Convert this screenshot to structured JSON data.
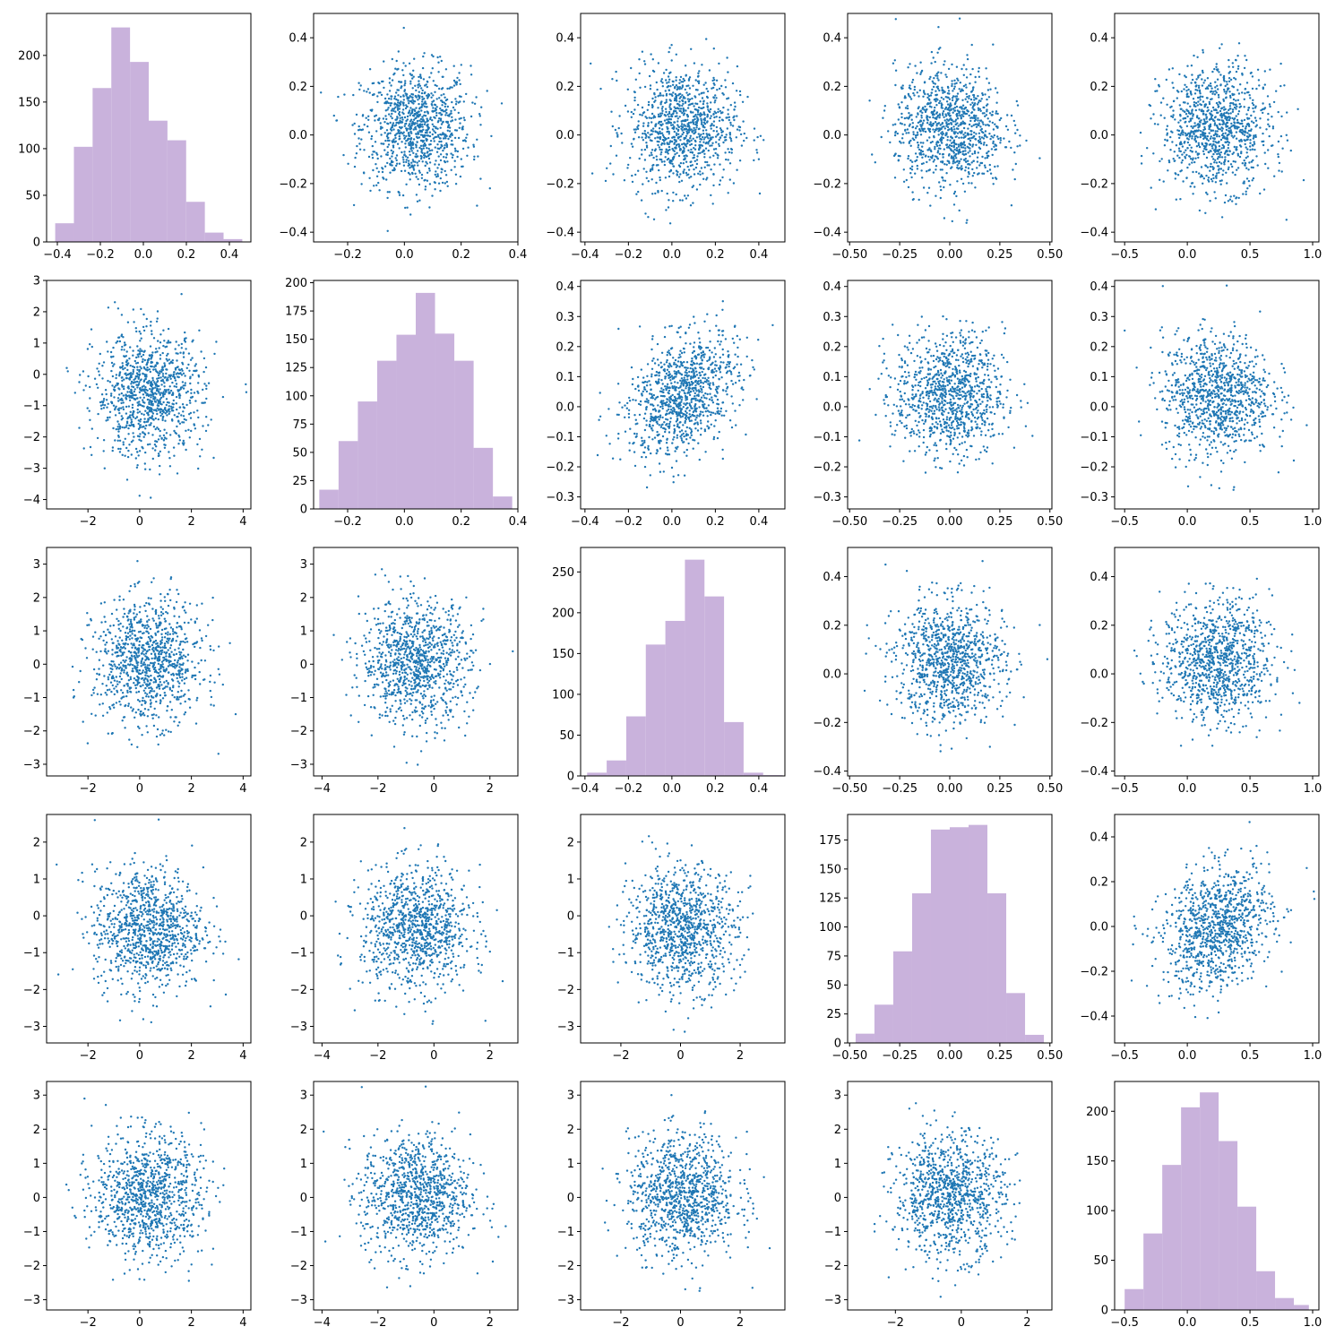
{
  "figure": {
    "background": "#ffffff",
    "grid": "5x5 pair plot",
    "diagonal": "histogram",
    "off_diagonal": "scatter"
  },
  "colors": {
    "hist": "#c9b2dc",
    "scatter": "#1f77b4",
    "frame": "#000000"
  },
  "variables": [
    {
      "index": 0,
      "range": [
        -0.45,
        0.5
      ],
      "ticks": [
        -0.4,
        -0.2,
        0.0,
        0.2,
        0.4
      ],
      "tick_labels": [
        "−0.4",
        "−0.2",
        "0.0",
        "0.2",
        "0.4"
      ]
    },
    {
      "index": 1,
      "range": [
        -0.32,
        0.4
      ],
      "ticks": [
        -0.2,
        0.0,
        0.2,
        0.4
      ],
      "tick_labels": [
        "−0.2",
        "0.0",
        "0.2",
        "0.4"
      ]
    },
    {
      "index": 2,
      "range": [
        -0.42,
        0.52
      ],
      "ticks": [
        -0.4,
        -0.2,
        0.0,
        0.2,
        0.4
      ],
      "tick_labels": [
        "−0.4",
        "−0.2",
        "0.0",
        "0.2",
        "0.4"
      ]
    },
    {
      "index": 3,
      "range": [
        -0.51,
        0.51
      ],
      "ticks": [
        -0.5,
        -0.25,
        0.0,
        0.25,
        0.5
      ],
      "tick_labels": [
        "−0.50",
        "−0.25",
        "0.00",
        "0.25",
        "0.50"
      ]
    },
    {
      "index": 4,
      "range": [
        -0.58,
        1.05
      ],
      "ticks": [
        -0.5,
        0.0,
        0.5,
        1.0
      ],
      "tick_labels": [
        "−0.5",
        "0.0",
        "0.5",
        "1.0"
      ]
    }
  ],
  "scatter_value_axes": {
    "row0": {
      "range": [
        -0.44,
        0.5
      ],
      "ticks": [
        -0.4,
        -0.2,
        0.0,
        0.2,
        0.4
      ],
      "tick_labels": [
        "−0.4",
        "−0.2",
        "0.0",
        "0.2",
        "0.4"
      ]
    },
    "row1": {
      "range": [
        -4.3,
        3.0
      ],
      "ticks": [
        -4,
        -3,
        -2,
        -1,
        0,
        1,
        2,
        3
      ],
      "tick_labels": [
        "−4",
        "−3",
        "−2",
        "−1",
        "0",
        "1",
        "2",
        "3"
      ]
    },
    "row1_col2plus": {
      "range": [
        -0.34,
        0.42
      ],
      "ticks": [
        -0.3,
        -0.2,
        -0.1,
        0.0,
        0.1,
        0.2,
        0.3,
        0.4
      ],
      "tick_labels": [
        "−0.3",
        "−0.2",
        "−0.1",
        "0.0",
        "0.1",
        "0.2",
        "0.3",
        "0.4"
      ]
    },
    "row2": {
      "range": [
        -3.35,
        3.5
      ],
      "ticks": [
        -3,
        -2,
        -1,
        0,
        1,
        2,
        3
      ],
      "tick_labels": [
        "−3",
        "−2",
        "−1",
        "0",
        "1",
        "2",
        "3"
      ]
    },
    "row2_col3plus": {
      "range": [
        -0.42,
        0.52
      ],
      "ticks": [
        -0.4,
        -0.2,
        0.0,
        0.2,
        0.4
      ],
      "tick_labels": [
        "−0.4",
        "−0.2",
        "0.0",
        "0.2",
        "0.4"
      ]
    },
    "row3": {
      "range": [
        -3.45,
        2.75
      ],
      "ticks": [
        -3,
        -2,
        -1,
        0,
        1,
        2
      ],
      "tick_labels": [
        "−3",
        "−2",
        "−1",
        "0",
        "1",
        "2"
      ]
    },
    "row3_col4": {
      "range": [
        -0.52,
        0.5
      ],
      "ticks": [
        -0.4,
        -0.2,
        0.0,
        0.2,
        0.4
      ],
      "tick_labels": [
        "−0.4",
        "−0.2",
        "0.0",
        "0.2",
        "0.4"
      ]
    },
    "row4": {
      "range": [
        -3.3,
        3.4
      ],
      "ticks": [
        -3,
        -2,
        -1,
        0,
        1,
        2,
        3
      ],
      "tick_labels": [
        "−3",
        "−2",
        "−1",
        "0",
        "1",
        "2",
        "3"
      ]
    },
    "col0_x": {
      "range": [
        -3.6,
        4.3
      ],
      "ticks": [
        -2,
        0,
        2,
        4
      ],
      "tick_labels": [
        "−2",
        "0",
        "2",
        "4"
      ]
    },
    "col1_x": {
      "range": [
        -4.3,
        3.0
      ],
      "ticks": [
        -4,
        -2,
        0,
        2
      ],
      "tick_labels": [
        "−4",
        "−2",
        "0",
        "2"
      ]
    },
    "col2_x": {
      "range": [
        -3.35,
        3.5
      ],
      "ticks": [
        -2,
        0,
        2
      ],
      "tick_labels": [
        "−2",
        "0",
        "2"
      ]
    },
    "col3_x": {
      "range": [
        -3.45,
        2.75
      ],
      "ticks": [
        -2,
        0,
        2
      ],
      "tick_labels": [
        "−2",
        "0",
        "2"
      ]
    }
  },
  "chart_data": [
    {
      "type": "bar",
      "panel": "r0c0",
      "bins": [
        -0.41,
        -0.323,
        -0.236,
        -0.149,
        -0.062,
        0.025,
        0.112,
        0.199,
        0.286,
        0.373,
        0.46
      ],
      "counts": [
        20,
        102,
        165,
        230,
        193,
        130,
        109,
        43,
        10,
        3
      ],
      "ylim": [
        0,
        245
      ],
      "yticks": [
        0,
        50,
        100,
        150,
        200
      ],
      "ytick_labels": [
        "0",
        "50",
        "100",
        "150",
        "200"
      ]
    },
    {
      "type": "bar",
      "panel": "r1c1",
      "bins": [
        -0.3,
        -0.232,
        -0.164,
        -0.096,
        -0.028,
        0.04,
        0.108,
        0.176,
        0.244,
        0.312,
        0.38
      ],
      "counts": [
        17,
        60,
        95,
        131,
        154,
        191,
        155,
        131,
        54,
        11
      ],
      "ylim": [
        0,
        202
      ],
      "yticks": [
        0,
        25,
        50,
        75,
        100,
        125,
        150,
        175,
        200
      ],
      "ytick_labels": [
        "0",
        "25",
        "50",
        "75",
        "100",
        "125",
        "150",
        "175",
        "200"
      ]
    },
    {
      "type": "bar",
      "panel": "r2c2",
      "bins": [
        -0.39,
        -0.3,
        -0.21,
        -0.12,
        -0.03,
        0.06,
        0.15,
        0.24,
        0.33,
        0.42,
        0.51
      ],
      "counts": [
        4,
        19,
        73,
        161,
        190,
        265,
        220,
        66,
        4,
        1
      ],
      "ylim": [
        0,
        280
      ],
      "yticks": [
        0,
        50,
        100,
        150,
        200,
        250
      ],
      "ytick_labels": [
        "0",
        "50",
        "100",
        "150",
        "200",
        "250"
      ]
    },
    {
      "type": "bar",
      "panel": "r3c3",
      "bins": [
        -0.47,
        -0.376,
        -0.282,
        -0.188,
        -0.094,
        0.0,
        0.094,
        0.188,
        0.282,
        0.376,
        0.47
      ],
      "counts": [
        8,
        33,
        79,
        129,
        184,
        186,
        188,
        129,
        43,
        7
      ],
      "ylim": [
        0,
        197
      ],
      "yticks": [
        0,
        25,
        50,
        75,
        100,
        125,
        150,
        175
      ],
      "ytick_labels": [
        "0",
        "25",
        "50",
        "75",
        "100",
        "125",
        "150",
        "175"
      ]
    },
    {
      "type": "bar",
      "panel": "r4c4",
      "bins": [
        -0.5,
        -0.35,
        -0.2,
        -0.05,
        0.1,
        0.25,
        0.4,
        0.55,
        0.7,
        0.85,
        0.97
      ],
      "counts": [
        21,
        77,
        146,
        204,
        219,
        170,
        104,
        39,
        12,
        5
      ],
      "ylim": [
        0,
        230
      ],
      "yticks": [
        0,
        50,
        100,
        150,
        200
      ],
      "ytick_labels": [
        "0",
        "50",
        "100",
        "150",
        "200"
      ]
    },
    {
      "type": "scatter",
      "panel": "off-diagonal",
      "n_points_per_panel": 1000,
      "x": "sampled",
      "y": "sampled",
      "note_grid": "no grid"
    }
  ]
}
